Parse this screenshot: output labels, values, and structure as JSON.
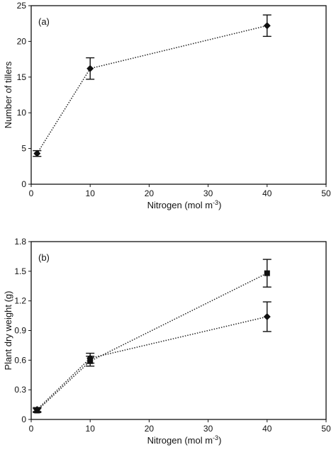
{
  "chart_data": [
    {
      "type": "line",
      "panel_label": "(a)",
      "xlabel": "Nitrogen (mol m",
      "xlabel_sup": "-3",
      "xlabel_end": ")",
      "ylabel": "Number of tillers",
      "xlim": [
        0,
        50
      ],
      "ylim": [
        0,
        25
      ],
      "xticks": [
        "0",
        "10",
        "20",
        "30",
        "40",
        "50"
      ],
      "yticks": [
        "0",
        "5",
        "10",
        "15",
        "20",
        "25"
      ],
      "grid": false,
      "series": [
        {
          "marker": "diamond",
          "x": [
            1,
            10,
            40
          ],
          "y": [
            4.3,
            16.2,
            22.2
          ],
          "err": [
            0.4,
            1.5,
            1.5
          ]
        }
      ]
    },
    {
      "type": "line",
      "panel_label": "(b)",
      "xlabel": "Nitrogen (mol m",
      "xlabel_sup": "-3",
      "xlabel_end": ")",
      "ylabel": "Plant dry weight (g)",
      "xlim": [
        0,
        50
      ],
      "ylim": [
        0,
        1.8
      ],
      "xticks": [
        "0",
        "10",
        "20",
        "30",
        "40",
        "50"
      ],
      "yticks": [
        "0",
        "0.3",
        "0.6",
        "0.9",
        "1.2",
        "1.5",
        "1.8"
      ],
      "grid": false,
      "series": [
        {
          "marker": "square",
          "x": [
            1,
            10,
            40
          ],
          "y": [
            0.09,
            0.59,
            1.48
          ],
          "err": [
            0.02,
            0.05,
            0.14
          ]
        },
        {
          "marker": "diamond",
          "x": [
            1,
            10,
            40
          ],
          "y": [
            0.1,
            0.62,
            1.04
          ],
          "err": [
            0.02,
            0.05,
            0.15
          ]
        }
      ]
    }
  ]
}
